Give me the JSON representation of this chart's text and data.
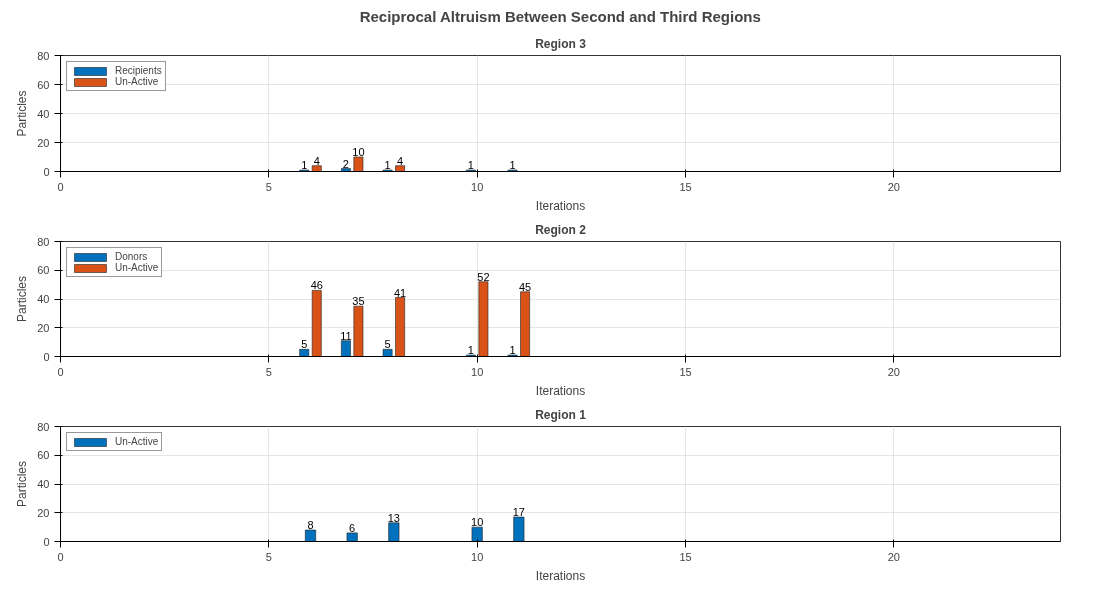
{
  "chart_data": [
    {
      "type": "bar",
      "title": "Reciprocal Altruism Between Second and Third Regions",
      "subtitle": "Region 3",
      "xlabel": "Iterations",
      "ylabel": "Particles",
      "x": [
        6,
        7,
        8,
        10,
        11
      ],
      "series": [
        {
          "name": "Recipients",
          "color": "#0072bd",
          "values": [
            1,
            2,
            1,
            1,
            1
          ]
        },
        {
          "name": "Un-Active",
          "color": "#d95319",
          "values": [
            4,
            10,
            4,
            null,
            null
          ]
        }
      ],
      "xlim": [
        0,
        24
      ],
      "ylim": [
        0,
        80
      ],
      "xticks": [
        0,
        5,
        10,
        15,
        20
      ],
      "yticks": [
        0,
        20,
        40,
        60,
        80
      ],
      "grid": true,
      "legend": "top left",
      "data_labels": true
    },
    {
      "type": "bar",
      "title": "Region 2",
      "xlabel": "Iterations",
      "ylabel": "Particles",
      "x": [
        6,
        7,
        8,
        10,
        11
      ],
      "series": [
        {
          "name": "Donors",
          "color": "#0072bd",
          "values": [
            5,
            11,
            5,
            1,
            1
          ]
        },
        {
          "name": "Un-Active",
          "color": "#d95319",
          "values": [
            46,
            35,
            41,
            52,
            45
          ]
        }
      ],
      "xlim": [
        0,
        24
      ],
      "ylim": [
        0,
        80
      ],
      "xticks": [
        0,
        5,
        10,
        15,
        20
      ],
      "yticks": [
        0,
        20,
        40,
        60,
        80
      ],
      "grid": true,
      "legend": "top left",
      "data_labels": true
    },
    {
      "type": "bar",
      "title": "Region 1",
      "xlabel": "Iterations",
      "ylabel": "Particles",
      "x": [
        6,
        7,
        8,
        10,
        11
      ],
      "series": [
        {
          "name": "Un-Active",
          "color": "#0072bd",
          "values": [
            8,
            6,
            13,
            10,
            17
          ]
        }
      ],
      "xlim": [
        0,
        24
      ],
      "ylim": [
        0,
        80
      ],
      "xticks": [
        0,
        5,
        10,
        15,
        20
      ],
      "yticks": [
        0,
        20,
        40,
        60,
        80
      ],
      "grid": true,
      "legend": "top left",
      "data_labels": true
    }
  ]
}
